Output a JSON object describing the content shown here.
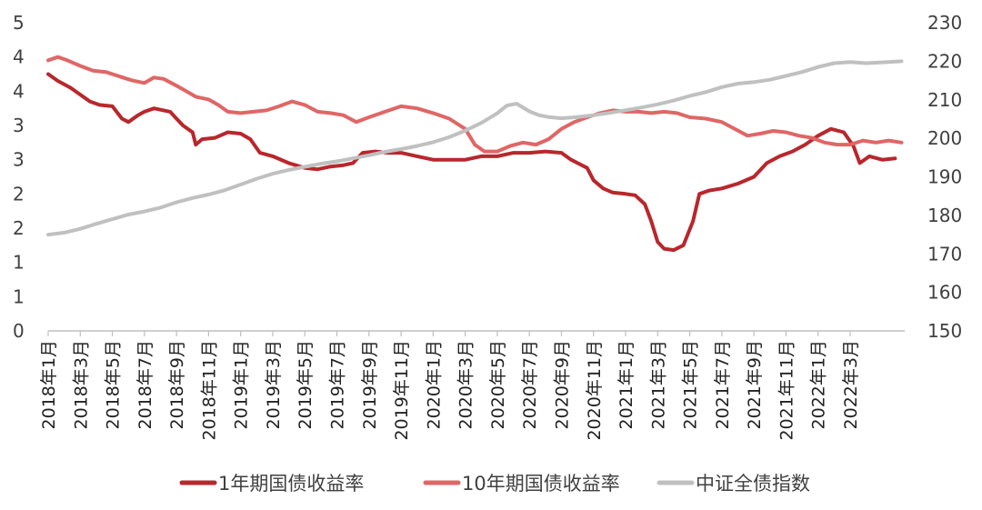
{
  "chart_data": {
    "type": "line",
    "left_axis": {
      "ticks": [
        "0",
        "1",
        "1",
        "2",
        "2",
        "3",
        "3",
        "4",
        "4",
        "5"
      ],
      "ylim": [
        0,
        4.5
      ]
    },
    "right_axis": {
      "ticks": [
        "150",
        "160",
        "170",
        "180",
        "190",
        "200",
        "210",
        "220",
        "230"
      ],
      "ylim": [
        150,
        230
      ]
    },
    "x_ticks": [
      "2018年1月",
      "2018年3月",
      "2018年5月",
      "2018年7月",
      "2018年9月",
      "2018年11月",
      "2019年1月",
      "2019年3月",
      "2019年5月",
      "2019年7月",
      "2019年9月",
      "2019年11月",
      "2020年1月",
      "2020年3月",
      "2020年5月",
      "2020年7月",
      "2020年9月",
      "2020年11月",
      "2021年1月",
      "2021年3月",
      "2021年5月",
      "2021年7月",
      "2021年9月",
      "2021年11月",
      "2022年1月",
      "2022年3月"
    ],
    "x_index_range": [
      0,
      26.7
    ],
    "series": [
      {
        "name": "1年期国债收益率",
        "axis": "left",
        "color": "#b8272c",
        "points": [
          [
            0,
            3.75
          ],
          [
            0.3,
            3.65
          ],
          [
            0.7,
            3.55
          ],
          [
            1.0,
            3.45
          ],
          [
            1.3,
            3.35
          ],
          [
            1.6,
            3.3
          ],
          [
            2.0,
            3.28
          ],
          [
            2.3,
            3.1
          ],
          [
            2.5,
            3.05
          ],
          [
            2.8,
            3.15
          ],
          [
            3.0,
            3.2
          ],
          [
            3.3,
            3.25
          ],
          [
            3.6,
            3.22
          ],
          [
            3.8,
            3.2
          ],
          [
            4.0,
            3.1
          ],
          [
            4.2,
            3.0
          ],
          [
            4.5,
            2.9
          ],
          [
            4.6,
            2.72
          ],
          [
            4.8,
            2.8
          ],
          [
            5.2,
            2.82
          ],
          [
            5.6,
            2.9
          ],
          [
            6.0,
            2.88
          ],
          [
            6.3,
            2.8
          ],
          [
            6.6,
            2.6
          ],
          [
            7.0,
            2.55
          ],
          [
            7.5,
            2.45
          ],
          [
            8.0,
            2.38
          ],
          [
            8.4,
            2.36
          ],
          [
            8.8,
            2.4
          ],
          [
            9.2,
            2.42
          ],
          [
            9.5,
            2.45
          ],
          [
            9.8,
            2.6
          ],
          [
            10.2,
            2.62
          ],
          [
            10.6,
            2.6
          ],
          [
            11.0,
            2.6
          ],
          [
            11.5,
            2.55
          ],
          [
            12.0,
            2.5
          ],
          [
            12.5,
            2.5
          ],
          [
            13.0,
            2.5
          ],
          [
            13.5,
            2.55
          ],
          [
            14.0,
            2.55
          ],
          [
            14.5,
            2.6
          ],
          [
            15.0,
            2.6
          ],
          [
            15.5,
            2.62
          ],
          [
            16.0,
            2.6
          ],
          [
            16.3,
            2.5
          ],
          [
            16.8,
            2.38
          ],
          [
            17.0,
            2.2
          ],
          [
            17.3,
            2.08
          ],
          [
            17.6,
            2.02
          ],
          [
            18.0,
            2.0
          ],
          [
            18.3,
            1.98
          ],
          [
            18.6,
            1.85
          ],
          [
            18.8,
            1.6
          ],
          [
            19.0,
            1.3
          ],
          [
            19.2,
            1.2
          ],
          [
            19.5,
            1.18
          ],
          [
            19.8,
            1.25
          ],
          [
            20.1,
            1.6
          ],
          [
            20.3,
            2.0
          ],
          [
            20.6,
            2.05
          ],
          [
            21.0,
            2.08
          ],
          [
            21.5,
            2.15
          ],
          [
            22.0,
            2.25
          ],
          [
            22.4,
            2.45
          ],
          [
            22.8,
            2.55
          ],
          [
            23.2,
            2.62
          ],
          [
            23.6,
            2.72
          ],
          [
            24.0,
            2.85
          ],
          [
            24.4,
            2.95
          ],
          [
            24.8,
            2.9
          ],
          [
            25.1,
            2.7
          ],
          [
            25.3,
            2.45
          ],
          [
            25.6,
            2.55
          ],
          [
            26.0,
            2.5
          ],
          [
            26.4,
            2.52
          ]
        ]
      },
      {
        "name": "10年期国债收益率",
        "axis": "left",
        "color": "#e06666",
        "points": [
          [
            0,
            3.95
          ],
          [
            0.3,
            4.0
          ],
          [
            0.6,
            3.95
          ],
          [
            1.0,
            3.87
          ],
          [
            1.4,
            3.8
          ],
          [
            1.8,
            3.78
          ],
          [
            2.2,
            3.72
          ],
          [
            2.6,
            3.66
          ],
          [
            3.0,
            3.62
          ],
          [
            3.3,
            3.7
          ],
          [
            3.6,
            3.68
          ],
          [
            4.0,
            3.58
          ],
          [
            4.3,
            3.5
          ],
          [
            4.6,
            3.42
          ],
          [
            5.0,
            3.38
          ],
          [
            5.3,
            3.3
          ],
          [
            5.6,
            3.2
          ],
          [
            6.0,
            3.18
          ],
          [
            6.4,
            3.2
          ],
          [
            6.8,
            3.22
          ],
          [
            7.2,
            3.28
          ],
          [
            7.6,
            3.35
          ],
          [
            8.0,
            3.3
          ],
          [
            8.4,
            3.2
          ],
          [
            8.8,
            3.18
          ],
          [
            9.2,
            3.15
          ],
          [
            9.6,
            3.05
          ],
          [
            10.0,
            3.12
          ],
          [
            10.5,
            3.2
          ],
          [
            11.0,
            3.28
          ],
          [
            11.5,
            3.25
          ],
          [
            12.0,
            3.18
          ],
          [
            12.5,
            3.1
          ],
          [
            13.0,
            2.95
          ],
          [
            13.3,
            2.72
          ],
          [
            13.6,
            2.62
          ],
          [
            14.0,
            2.62
          ],
          [
            14.4,
            2.7
          ],
          [
            14.8,
            2.75
          ],
          [
            15.2,
            2.72
          ],
          [
            15.6,
            2.8
          ],
          [
            16.0,
            2.95
          ],
          [
            16.4,
            3.05
          ],
          [
            16.8,
            3.12
          ],
          [
            17.2,
            3.18
          ],
          [
            17.6,
            3.22
          ],
          [
            18.0,
            3.2
          ],
          [
            18.4,
            3.2
          ],
          [
            18.8,
            3.18
          ],
          [
            19.2,
            3.2
          ],
          [
            19.6,
            3.18
          ],
          [
            20.0,
            3.12
          ],
          [
            20.5,
            3.1
          ],
          [
            21.0,
            3.05
          ],
          [
            21.4,
            2.95
          ],
          [
            21.8,
            2.85
          ],
          [
            22.2,
            2.88
          ],
          [
            22.6,
            2.92
          ],
          [
            23.0,
            2.9
          ],
          [
            23.4,
            2.85
          ],
          [
            23.8,
            2.82
          ],
          [
            24.2,
            2.75
          ],
          [
            24.6,
            2.72
          ],
          [
            25.0,
            2.72
          ],
          [
            25.4,
            2.78
          ],
          [
            25.8,
            2.75
          ],
          [
            26.2,
            2.78
          ],
          [
            26.6,
            2.75
          ]
        ]
      },
      {
        "name": "中证全债指数",
        "axis": "right",
        "color": "#c0c0c0",
        "points": [
          [
            0,
            175
          ],
          [
            0.5,
            175.5
          ],
          [
            1,
            176.5
          ],
          [
            1.5,
            177.8
          ],
          [
            2,
            179
          ],
          [
            2.5,
            180.2
          ],
          [
            3,
            181
          ],
          [
            3.5,
            182
          ],
          [
            4,
            183.4
          ],
          [
            4.5,
            184.5
          ],
          [
            5,
            185.4
          ],
          [
            5.5,
            186.5
          ],
          [
            6,
            188
          ],
          [
            6.5,
            189.5
          ],
          [
            7,
            190.8
          ],
          [
            7.5,
            191.8
          ],
          [
            8,
            192.6
          ],
          [
            8.5,
            193.4
          ],
          [
            9,
            194
          ],
          [
            9.5,
            194.8
          ],
          [
            10,
            195.6
          ],
          [
            10.5,
            196.5
          ],
          [
            11,
            197.2
          ],
          [
            11.5,
            198
          ],
          [
            12,
            199
          ],
          [
            12.5,
            200.3
          ],
          [
            13,
            202
          ],
          [
            13.5,
            204
          ],
          [
            14,
            206.5
          ],
          [
            14.3,
            208.5
          ],
          [
            14.6,
            209
          ],
          [
            15,
            207
          ],
          [
            15.3,
            206
          ],
          [
            15.6,
            205.5
          ],
          [
            16,
            205.2
          ],
          [
            16.5,
            205.5
          ],
          [
            17,
            206
          ],
          [
            17.5,
            206.6
          ],
          [
            18,
            207.3
          ],
          [
            18.5,
            208
          ],
          [
            19,
            208.8
          ],
          [
            19.5,
            209.8
          ],
          [
            20,
            211
          ],
          [
            20.5,
            212
          ],
          [
            21,
            213.3
          ],
          [
            21.5,
            214.2
          ],
          [
            22,
            214.6
          ],
          [
            22.5,
            215.2
          ],
          [
            23,
            216.2
          ],
          [
            23.5,
            217.2
          ],
          [
            24,
            218.5
          ],
          [
            24.5,
            219.5
          ],
          [
            25,
            219.8
          ],
          [
            25.5,
            219.5
          ],
          [
            26,
            219.7
          ],
          [
            26.6,
            220
          ]
        ]
      }
    ],
    "legend": [
      "1年期国债收益率",
      "10年期国债收益率",
      "中证全债指数"
    ],
    "legend_position": "bottom",
    "grid": false
  }
}
